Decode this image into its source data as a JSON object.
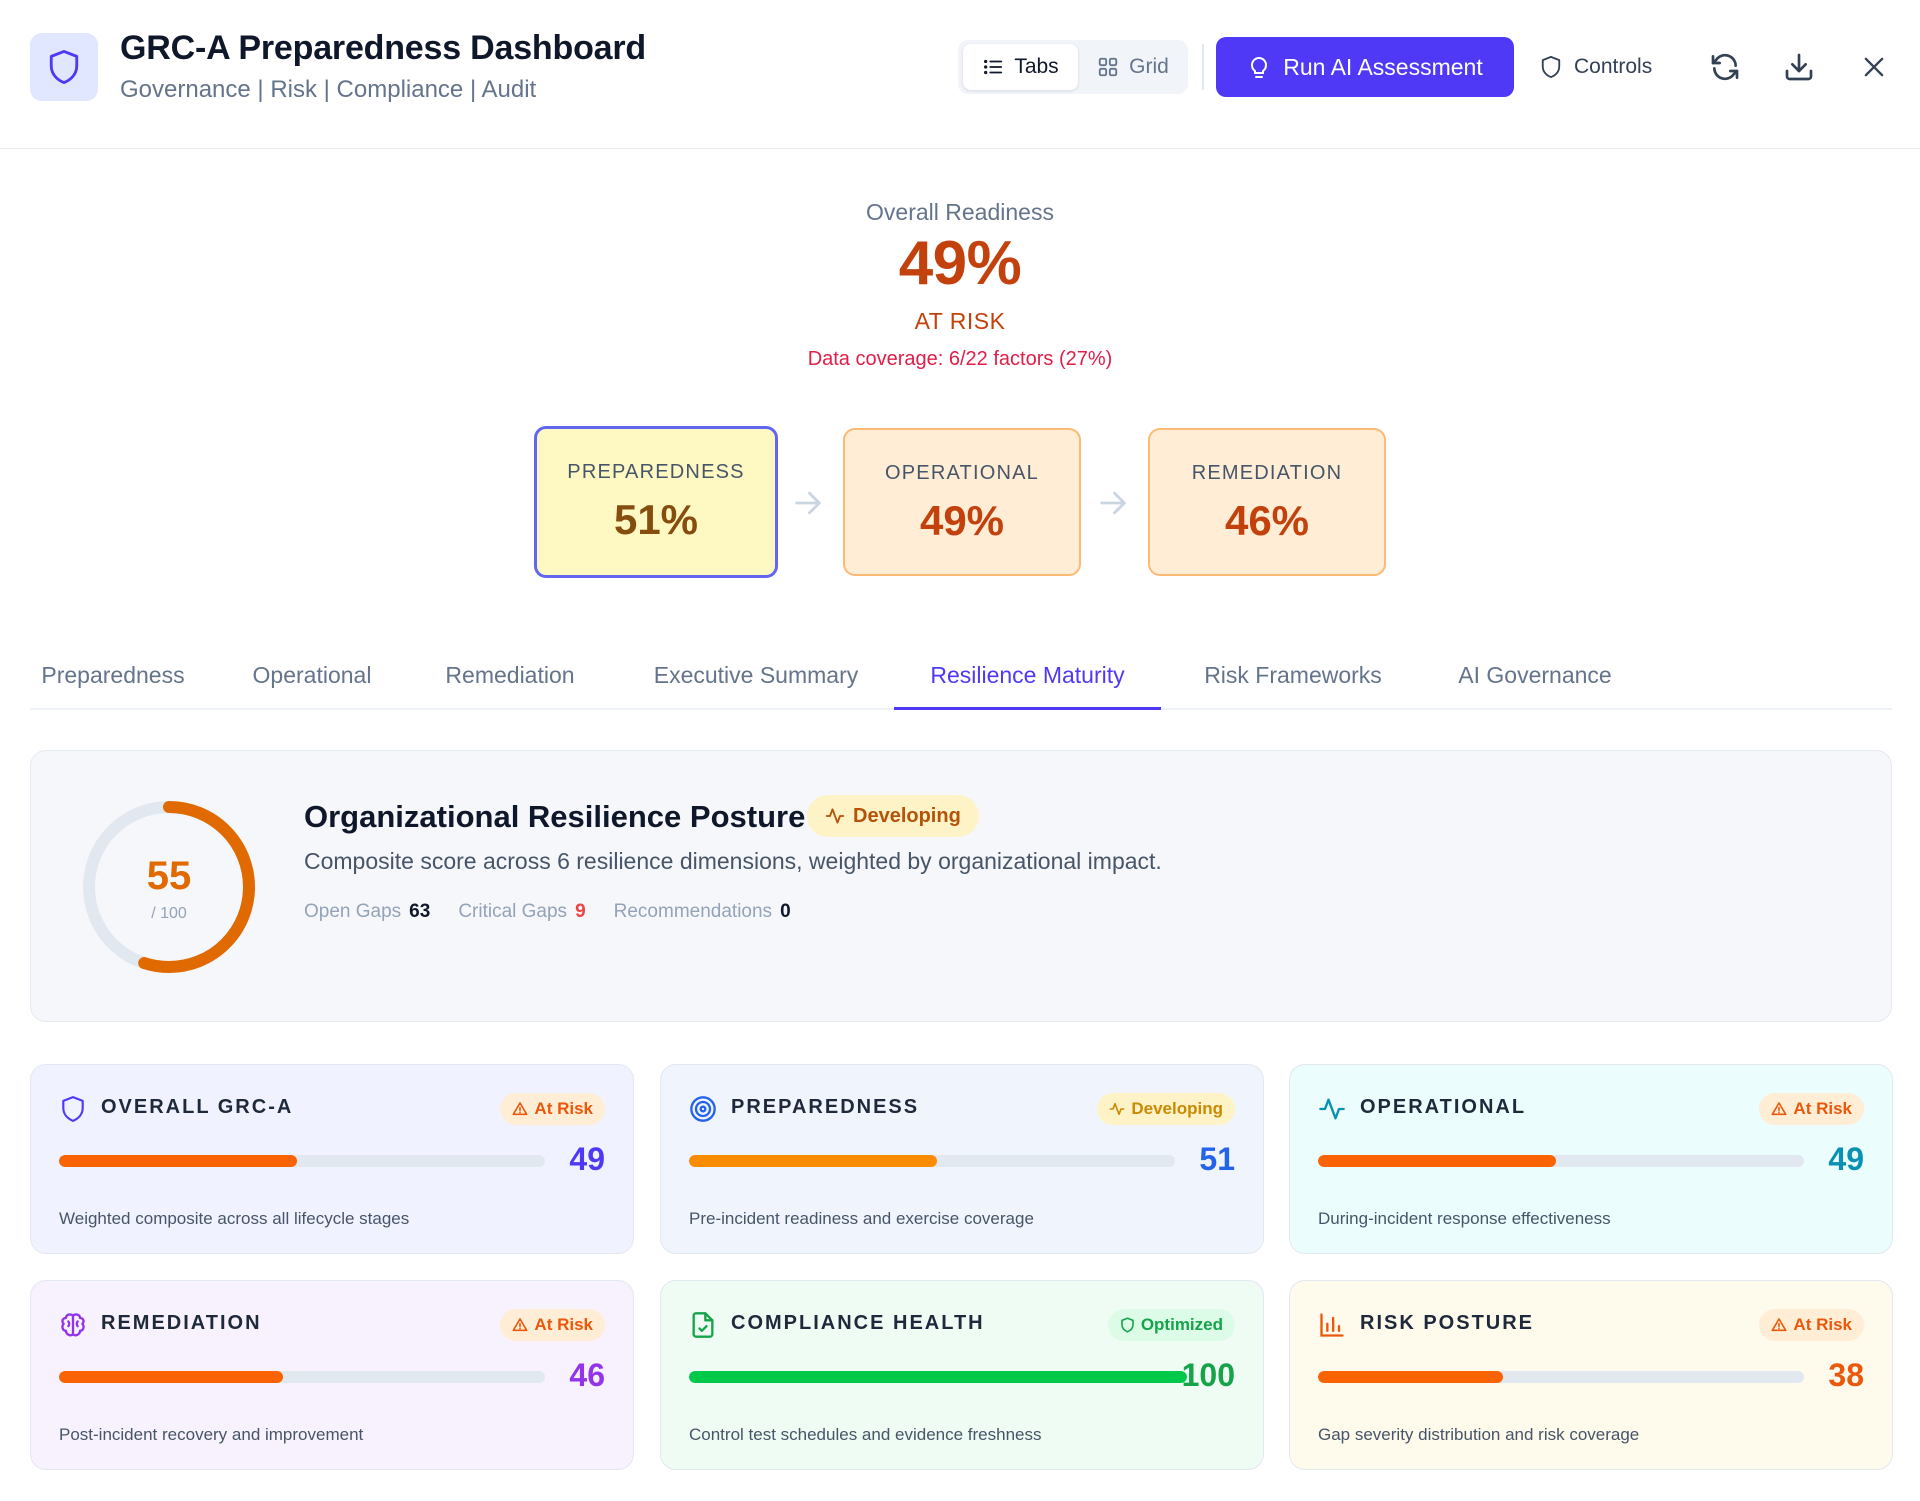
{
  "header": {
    "title": "GRC-A Preparedness Dashboard",
    "subtitle": "Governance | Risk | Compliance | Audit",
    "brand_icon": "shield-icon",
    "view_toggle": {
      "tabs_label": "Tabs",
      "grid_label": "Grid",
      "selected": "Tabs"
    },
    "run_button": "Run AI Assessment",
    "controls_button": "Controls",
    "actions": [
      "refresh-icon",
      "download-icon",
      "close-icon"
    ]
  },
  "overall": {
    "label": "Overall Readiness",
    "value": "49%",
    "status": "AT RISK",
    "coverage": "Data coverage: 6/22 factors (27%)"
  },
  "stages": [
    {
      "label": "PREPAREDNESS",
      "value": "51%"
    },
    {
      "label": "OPERATIONAL",
      "value": "49%"
    },
    {
      "label": "REMEDIATION",
      "value": "46%"
    }
  ],
  "tabs": [
    {
      "label": "Preparedness"
    },
    {
      "label": "Operational"
    },
    {
      "label": "Remediation"
    },
    {
      "label": "Executive Summary"
    },
    {
      "label": "Resilience Maturity",
      "active": true
    },
    {
      "label": "Risk Frameworks"
    },
    {
      "label": "AI Governance"
    }
  ],
  "posture": {
    "score": "55",
    "score_fraction": 0.55,
    "max_label": "/ 100",
    "title": "Organizational Resilience Posture",
    "badge": "Developing",
    "description": "Composite score across 6 resilience dimensions, weighted by organizational impact.",
    "stats": {
      "open_gaps_label": "Open Gaps",
      "open_gaps": "63",
      "critical_gaps_label": "Critical Gaps",
      "critical_gaps": "9",
      "recommendations_label": "Recommendations",
      "recommendations": "0"
    }
  },
  "cards": [
    {
      "title": "OVERALL GRC-A",
      "badge": "At Risk",
      "value": "49",
      "progress": 0.49,
      "description": "Weighted composite across all lifecycle stages",
      "icon": "shield-icon",
      "accent": "#4f39f6",
      "fill": "#f96302"
    },
    {
      "title": "PREPAREDNESS",
      "badge": "Developing",
      "value": "51",
      "progress": 0.51,
      "description": "Pre-incident readiness and exercise coverage",
      "icon": "target-icon",
      "accent": "#2563eb",
      "fill": "#fb8c00"
    },
    {
      "title": "OPERATIONAL",
      "badge": "At Risk",
      "value": "49",
      "progress": 0.49,
      "description": "During-incident response effectiveness",
      "icon": "activity-icon",
      "accent": "#0891b2",
      "fill": "#f96302"
    },
    {
      "title": "REMEDIATION",
      "badge": "At Risk",
      "value": "46",
      "progress": 0.46,
      "description": "Post-incident recovery and improvement",
      "icon": "brain-icon",
      "accent": "#9333ea",
      "fill": "#f96302"
    },
    {
      "title": "COMPLIANCE HEALTH",
      "badge": "Optimized",
      "value": "100",
      "progress": 1.0,
      "description": "Control test schedules and evidence freshness",
      "icon": "file-check-icon",
      "accent": "#16a34a",
      "fill": "#00c94a"
    },
    {
      "title": "RISK POSTURE",
      "badge": "At Risk",
      "value": "38",
      "progress": 0.38,
      "description": "Gap severity distribution and risk coverage",
      "icon": "bar-chart-icon",
      "accent": "#ea580c",
      "fill": "#f96302"
    }
  ]
}
